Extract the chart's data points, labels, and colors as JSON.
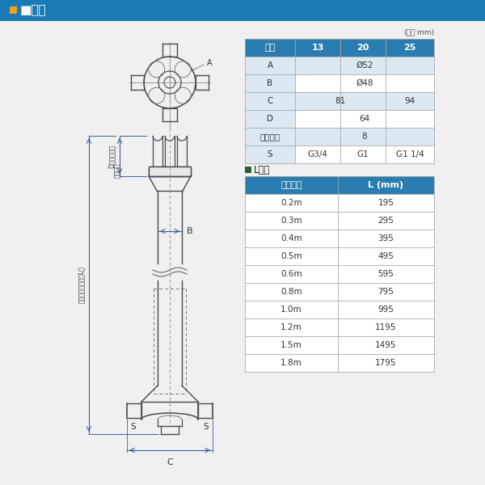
{
  "title": "■寸法",
  "title_bg_color": "#1a7ab5",
  "title_text_color": "#ffffff",
  "title_square_color": "#f0a020",
  "unit_note": "(単位:mm)",
  "table1_header": [
    "口径",
    "13",
    "20",
    "25"
  ],
  "table1_header_bg": "#2a7db0",
  "table1_header_text": "#ffffff",
  "table1_row_bg_light": "#dce8f2",
  "table1_row_bg_white": "#ffffff",
  "table1_rows": [
    [
      "A",
      "Ø52",
      "",
      ""
    ],
    [
      "B",
      "Ø48",
      "",
      ""
    ],
    [
      "C",
      "81",
      "",
      "94"
    ],
    [
      "D",
      "64",
      "",
      ""
    ],
    [
      "リフト量",
      "8",
      "",
      ""
    ],
    [
      "S",
      "G3/4",
      "G1",
      "G1 1/4"
    ]
  ],
  "table2_title": "■L寸法",
  "table2_sq_color": "#2a6030",
  "table2_header": [
    "呼び長さ",
    "L (mm)"
  ],
  "table2_header_bg": "#2a7db0",
  "table2_header_text": "#ffffff",
  "table2_row_bg": "#ffffff",
  "table2_rows": [
    [
      "0.2m",
      "195"
    ],
    [
      "0.3m",
      "295"
    ],
    [
      "0.4m",
      "395"
    ],
    [
      "0.5m",
      "495"
    ],
    [
      "0.6m",
      "595"
    ],
    [
      "0.8m",
      "795"
    ],
    [
      "1.0m",
      "995"
    ],
    [
      "1.2m",
      "1195"
    ],
    [
      "1.5m",
      "1495"
    ],
    [
      "1.8m",
      "1795"
    ]
  ],
  "bg_color": "#f0f0f0",
  "lc": "#4a4a4a",
  "lc_thin": "#777777",
  "dc": "#4060a0"
}
